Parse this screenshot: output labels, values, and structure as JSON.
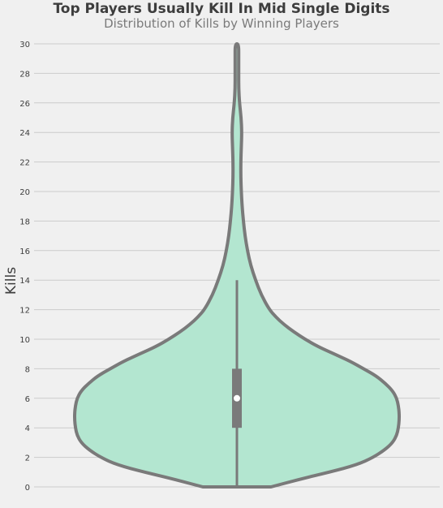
{
  "chart_data": {
    "type": "violin",
    "title": "Top Players Usually Kill In Mid Single Digits",
    "subtitle": "Distribution of Kills by Winning Players",
    "xlabel": "",
    "ylabel": "Kills",
    "ylim": [
      0,
      30
    ],
    "yticks": [
      0,
      2,
      4,
      6,
      8,
      10,
      12,
      14,
      16,
      18,
      20,
      22,
      24,
      26,
      28,
      30
    ],
    "grid": true,
    "colors": {
      "fill": "#b3e6d0",
      "outline": "#7a7a7a",
      "median": "#ffffff",
      "background": "#f0f0f0",
      "grid": "#cbcbcb"
    },
    "box": {
      "whisker_low": 0,
      "q1": 4,
      "median": 6,
      "q3": 8,
      "whisker_high": 14
    },
    "density": [
      {
        "y": 0,
        "w": 0.21
      },
      {
        "y": 0.5,
        "w": 0.38
      },
      {
        "y": 1,
        "w": 0.57
      },
      {
        "y": 1.5,
        "w": 0.74
      },
      {
        "y": 2,
        "w": 0.84
      },
      {
        "y": 2.5,
        "w": 0.91
      },
      {
        "y": 3,
        "w": 0.96
      },
      {
        "y": 3.5,
        "w": 0.985
      },
      {
        "y": 4,
        "w": 0.995
      },
      {
        "y": 4.5,
        "w": 1.0
      },
      {
        "y": 5,
        "w": 1.0
      },
      {
        "y": 5.5,
        "w": 0.995
      },
      {
        "y": 6,
        "w": 0.985
      },
      {
        "y": 6.5,
        "w": 0.96
      },
      {
        "y": 7,
        "w": 0.915
      },
      {
        "y": 7.5,
        "w": 0.86
      },
      {
        "y": 8,
        "w": 0.78
      },
      {
        "y": 8.5,
        "w": 0.7
      },
      {
        "y": 9,
        "w": 0.6
      },
      {
        "y": 9.5,
        "w": 0.5
      },
      {
        "y": 10,
        "w": 0.42
      },
      {
        "y": 10.5,
        "w": 0.35
      },
      {
        "y": 11,
        "w": 0.29
      },
      {
        "y": 11.5,
        "w": 0.24
      },
      {
        "y": 12,
        "w": 0.2
      },
      {
        "y": 13,
        "w": 0.15
      },
      {
        "y": 14,
        "w": 0.115
      },
      {
        "y": 15,
        "w": 0.085
      },
      {
        "y": 16,
        "w": 0.065
      },
      {
        "y": 17,
        "w": 0.05
      },
      {
        "y": 18,
        "w": 0.04
      },
      {
        "y": 19,
        "w": 0.032
      },
      {
        "y": 20,
        "w": 0.027
      },
      {
        "y": 21,
        "w": 0.024
      },
      {
        "y": 22,
        "w": 0.024
      },
      {
        "y": 23,
        "w": 0.027
      },
      {
        "y": 24,
        "w": 0.03
      },
      {
        "y": 25,
        "w": 0.026
      },
      {
        "y": 26,
        "w": 0.016
      },
      {
        "y": 27,
        "w": 0.011
      },
      {
        "y": 28,
        "w": 0.011
      },
      {
        "y": 29,
        "w": 0.011
      },
      {
        "y": 30,
        "w": 0.011
      }
    ]
  }
}
